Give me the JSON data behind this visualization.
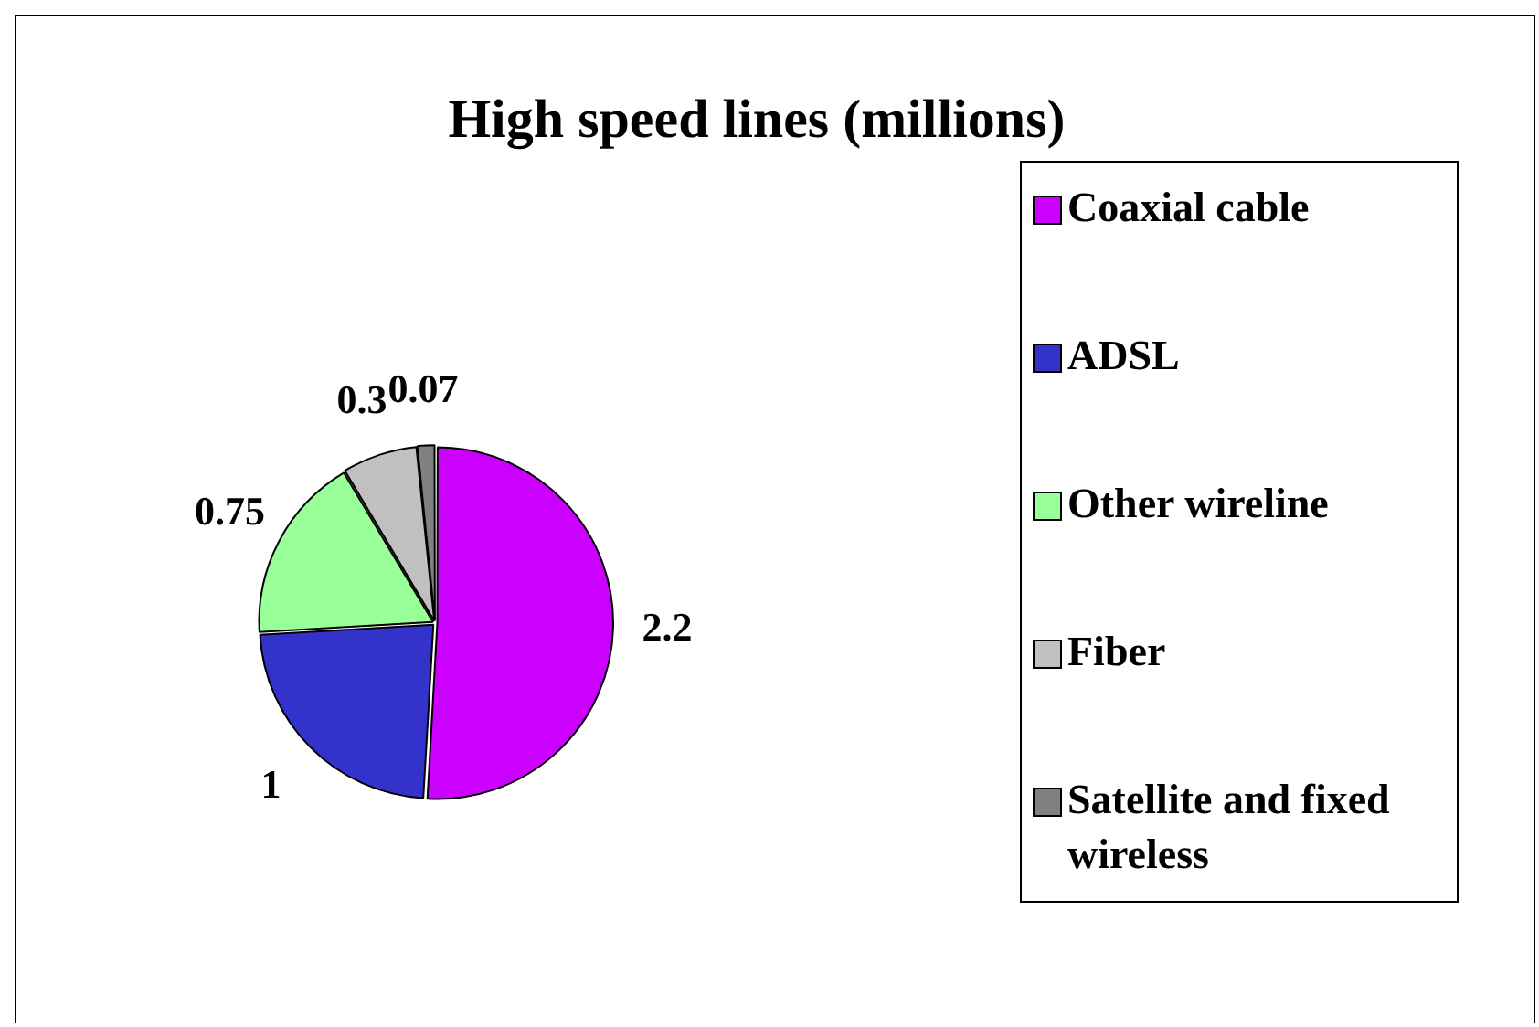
{
  "chart_data": {
    "type": "pie",
    "title": "High speed lines (millions)",
    "categories": [
      "Coaxial cable",
      "ADSL",
      "Other wireline",
      "Fiber",
      "Satellite and fixed wireless"
    ],
    "values": [
      2.2,
      1,
      0.75,
      0.3,
      0.07
    ],
    "colors": [
      "#cc00ff",
      "#3333cc",
      "#99ff99",
      "#c0c0c0",
      "#808080"
    ],
    "data_labels": true,
    "legend": "right"
  }
}
